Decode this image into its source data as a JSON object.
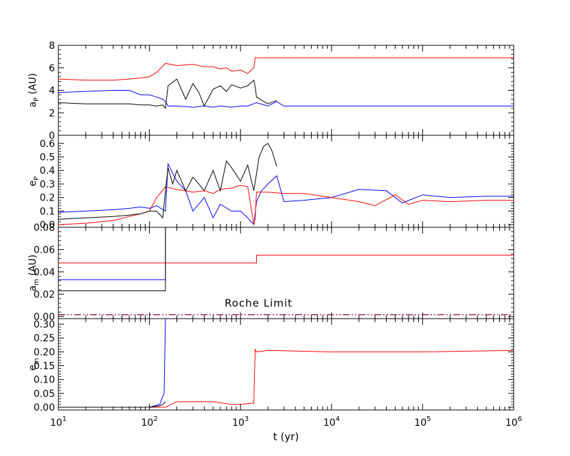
{
  "chart_data": [
    {
      "type": "line",
      "ylabel_main": "a",
      "ylabel_sub": "P",
      "ylabel_unit": " (AU)",
      "ylim": [
        0,
        8
      ],
      "yticks": [
        "0",
        "2",
        "4",
        "6",
        "8"
      ],
      "series": [
        {
          "color": "#ff0000",
          "style": "solid",
          "x": [
            10,
            20,
            40,
            60,
            80,
            100,
            120,
            150,
            200,
            300,
            400,
            500,
            600,
            700,
            800,
            1000,
            1200,
            1400,
            1450,
            1500,
            2000,
            5000,
            10000,
            100000,
            1000000
          ],
          "y": [
            5.0,
            4.9,
            4.9,
            5.0,
            5.1,
            5.2,
            5.6,
            6.4,
            6.2,
            6.3,
            6.1,
            6.1,
            5.9,
            6.0,
            5.7,
            5.8,
            5.5,
            6.0,
            6.9,
            6.9,
            6.9,
            6.9,
            6.9,
            6.9,
            6.9
          ]
        },
        {
          "color": "#0000ff",
          "style": "solid",
          "x": [
            10,
            20,
            40,
            60,
            80,
            100,
            120,
            140,
            150,
            160,
            200,
            300,
            400,
            500,
            600,
            800,
            1000,
            1200,
            1500,
            2000,
            2500,
            3000,
            10000,
            100000,
            1000000
          ],
          "y": [
            3.8,
            3.9,
            4.0,
            4.0,
            3.6,
            3.6,
            3.4,
            3.2,
            3.0,
            2.6,
            2.6,
            2.5,
            2.6,
            2.5,
            2.6,
            2.5,
            2.6,
            2.6,
            2.9,
            2.6,
            3.0,
            2.6,
            2.6,
            2.6,
            2.6
          ]
        },
        {
          "color": "#000000",
          "style": "solid",
          "x": [
            10,
            20,
            40,
            60,
            80,
            100,
            120,
            140,
            150,
            160,
            200,
            250,
            300,
            350,
            400,
            500,
            600,
            700,
            800,
            1000,
            1200,
            1400,
            1450,
            1500,
            2000,
            2500
          ],
          "y": [
            2.9,
            2.8,
            2.8,
            2.8,
            2.7,
            2.7,
            2.6,
            2.7,
            2.4,
            4.4,
            5.0,
            3.2,
            4.6,
            3.8,
            2.6,
            4.1,
            4.4,
            3.9,
            4.5,
            4.2,
            4.4,
            4.9,
            4.3,
            3.4,
            2.8,
            3.1
          ]
        }
      ]
    },
    {
      "type": "line",
      "ylabel_main": "e",
      "ylabel_sub": "P",
      "ylabel_unit": "",
      "ylim": [
        -0.02,
        0.66
      ],
      "yticks": [
        "0.0",
        "0.1",
        "0.2",
        "0.3",
        "0.4",
        "0.5",
        "0.6"
      ],
      "series": [
        {
          "color": "#0000ff",
          "style": "solid",
          "x": [
            10,
            20,
            40,
            60,
            80,
            100,
            120,
            150,
            160,
            200,
            250,
            300,
            400,
            500,
            600,
            800,
            1000,
            1200,
            1400,
            1500,
            1700,
            2000,
            2500,
            3000,
            5000,
            10000,
            20000,
            40000,
            60000,
            100000,
            200000,
            500000,
            1000000
          ],
          "y": [
            0.09,
            0.1,
            0.11,
            0.12,
            0.13,
            0.12,
            0.14,
            0.1,
            0.45,
            0.32,
            0.25,
            0.1,
            0.2,
            0.05,
            0.15,
            0.1,
            0.1,
            0.05,
            0.0,
            0.17,
            0.25,
            0.3,
            0.36,
            0.17,
            0.18,
            0.2,
            0.26,
            0.25,
            0.16,
            0.22,
            0.2,
            0.21,
            0.21
          ]
        },
        {
          "color": "#ff0000",
          "style": "solid",
          "x": [
            10,
            20,
            40,
            60,
            80,
            100,
            120,
            150,
            200,
            300,
            400,
            500,
            600,
            800,
            1000,
            1200,
            1400,
            1450,
            1500,
            2000,
            3000,
            5000,
            10000,
            20000,
            30000,
            50000,
            70000,
            100000,
            200000,
            500000,
            1000000
          ],
          "y": [
            0.0,
            0.01,
            0.03,
            0.06,
            0.08,
            0.1,
            0.2,
            0.28,
            0.26,
            0.24,
            0.25,
            0.23,
            0.26,
            0.27,
            0.29,
            0.28,
            0.0,
            0.05,
            0.24,
            0.24,
            0.23,
            0.23,
            0.2,
            0.17,
            0.14,
            0.22,
            0.15,
            0.18,
            0.17,
            0.18,
            0.18
          ]
        },
        {
          "color": "#000000",
          "style": "solid",
          "x": [
            10,
            20,
            40,
            60,
            80,
            100,
            120,
            140,
            150,
            160,
            180,
            200,
            250,
            300,
            350,
            400,
            500,
            600,
            700,
            800,
            1000,
            1200,
            1400,
            1600,
            1800,
            2000,
            2200,
            2500
          ],
          "y": [
            0.04,
            0.05,
            0.06,
            0.07,
            0.08,
            0.1,
            0.1,
            0.05,
            0.25,
            0.42,
            0.3,
            0.4,
            0.25,
            0.35,
            0.3,
            0.25,
            0.4,
            0.25,
            0.47,
            0.42,
            0.32,
            0.44,
            0.25,
            0.5,
            0.58,
            0.6,
            0.55,
            0.43
          ]
        }
      ]
    },
    {
      "type": "line",
      "ylabel_main": "a",
      "ylabel_sub": "m",
      "ylabel_unit": " (AU)",
      "ylim": [
        -0.002,
        0.08
      ],
      "yticks": [
        "0.00",
        "0.02",
        "0.04",
        "0.06",
        "0.08"
      ],
      "annotation": "Roche Limit",
      "annotation_y": 0.012,
      "series": [
        {
          "color": "#ff0000",
          "style": "solid",
          "x": [
            10,
            1500,
            1500,
            1000000
          ],
          "y": [
            0.048,
            0.048,
            0.055,
            0.055
          ]
        },
        {
          "color": "#0000ff",
          "style": "solid",
          "x": [
            10,
            150,
            150
          ],
          "y": [
            0.033,
            0.033,
            0.08
          ]
        },
        {
          "color": "#000000",
          "style": "solid",
          "x": [
            10,
            150,
            150
          ],
          "y": [
            0.023,
            0.023,
            0.08
          ]
        },
        {
          "color": "#8b1a5a",
          "style": "dashdot",
          "x": [
            10,
            1000000
          ],
          "y": [
            0.0015,
            0.0015
          ]
        }
      ]
    },
    {
      "type": "line",
      "ylabel_main": "e",
      "ylabel_sub": "m",
      "ylabel_unit": "",
      "ylim": [
        -0.01,
        0.32
      ],
      "yticks": [
        "0.00",
        "0.05",
        "0.10",
        "0.15",
        "0.20",
        "0.25",
        "0.30"
      ],
      "series": [
        {
          "color": "#ff0000",
          "style": "solid",
          "x": [
            10,
            50,
            100,
            150,
            200,
            300,
            500,
            800,
            1000,
            1400,
            1450,
            1500,
            2000,
            10000,
            100000,
            1000000
          ],
          "y": [
            0.0,
            0.0,
            0.0,
            0.0,
            0.02,
            0.02,
            0.02,
            0.01,
            0.01,
            0.015,
            0.21,
            0.2,
            0.205,
            0.2,
            0.2,
            0.205
          ]
        },
        {
          "color": "#0000ff",
          "style": "solid",
          "x": [
            10,
            50,
            100,
            130,
            140,
            145,
            150
          ],
          "y": [
            0.0,
            0.0,
            0.0,
            0.01,
            0.04,
            0.05,
            0.32
          ]
        },
        {
          "color": "#000000",
          "style": "solid",
          "x": [
            10,
            50,
            100,
            130,
            140,
            150
          ],
          "y": [
            0.0,
            0.0,
            0.0,
            0.005,
            0.01,
            0.02
          ]
        }
      ]
    }
  ],
  "xaxis": {
    "label": "t (yr)",
    "scale": "log",
    "xlim": [
      10,
      1000000
    ],
    "ticks": [
      {
        "base": "10",
        "exp": "1"
      },
      {
        "base": "10",
        "exp": "2"
      },
      {
        "base": "10",
        "exp": "3"
      },
      {
        "base": "10",
        "exp": "4"
      },
      {
        "base": "10",
        "exp": "5"
      },
      {
        "base": "10",
        "exp": "6"
      }
    ]
  }
}
